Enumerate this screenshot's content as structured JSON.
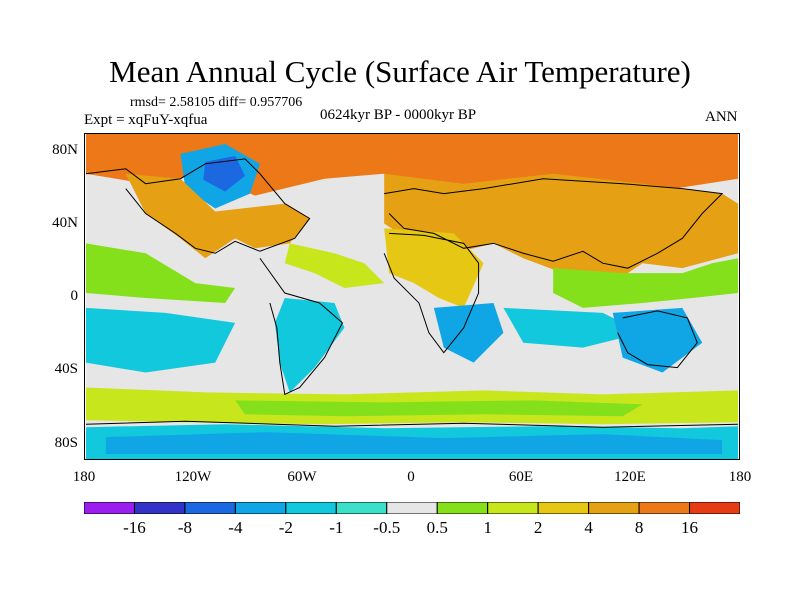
{
  "title": "Mean Annual Cycle (Surface Air Temperature)",
  "stats": "rmsd= 2.58105 diff= 0.957706",
  "experiment": "Expt = xqFuY-xqfua",
  "period": "0624kyr BP - 0000kyr BP",
  "season": "ANN",
  "lat_labels": [
    "80N",
    "40N",
    "0",
    "40S",
    "80S"
  ],
  "lon_labels": [
    "180",
    "120W",
    "60W",
    "0",
    "60E",
    "120E",
    "180"
  ],
  "colorbar": {
    "labels": [
      "-16",
      "-8",
      "-4",
      "-2",
      "-1",
      "-0.5",
      "0.5",
      "1",
      "2",
      "4",
      "8",
      "16"
    ],
    "colors": [
      "#9a1ef0",
      "#3232c8",
      "#1c68e0",
      "#10a6e6",
      "#11c8dc",
      "#3ce0c8",
      "#e6e6e6",
      "#84e01a",
      "#c8e61c",
      "#e6c814",
      "#e6a014",
      "#ec7818",
      "#e63c14"
    ]
  },
  "map_colors": {
    "neutral": "#e6e6e6",
    "warm_mid": "#e6c814",
    "warm_high": "#e6a014",
    "warm_strong": "#ec7818",
    "warm_light": "#c8e61c",
    "green": "#84e01a",
    "cool": "#11c8dc",
    "cool_mid": "#10a6e6",
    "cool_deep": "#1c68e0",
    "coast": "#000000"
  }
}
